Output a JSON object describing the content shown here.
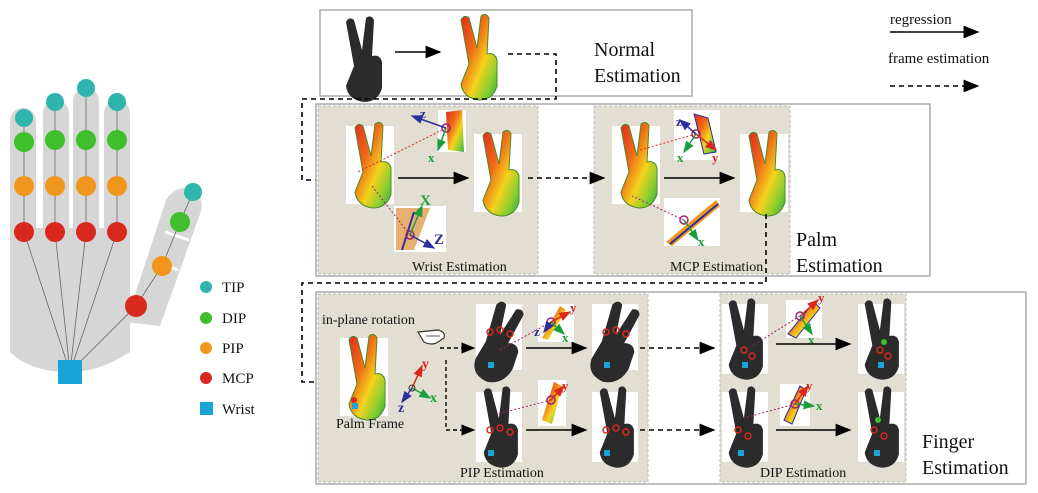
{
  "legend": {
    "regression": "regression",
    "frame_estimation": "frame estimation"
  },
  "joints": {
    "tip": "TIP",
    "dip": "DIP",
    "pip": "PIP",
    "mcp": "MCP",
    "wrist": "Wrist"
  },
  "colors": {
    "tip": "#2fb5ad",
    "dip": "#3fbf2b",
    "pip": "#f0961c",
    "mcp": "#d9281e",
    "wrist": "#1aa3d6",
    "panel_bg": "#e2dfd2",
    "hand_gray": "#d6d6d6"
  },
  "stages": {
    "normal": [
      "Normal",
      "Estimation"
    ],
    "palm": [
      "Palm",
      "Estimation"
    ],
    "finger": [
      "Finger",
      "Estimation"
    ]
  },
  "sub_labels": {
    "wrist": "Wrist Estimation",
    "mcp": "MCP Estimation",
    "pip": "PIP Estimation",
    "dip": "DIP Estimation",
    "palm_frame": "Palm Frame",
    "in_plane_rotation": "in-plane rotation"
  },
  "axes": {
    "x": "x",
    "y": "y",
    "z": "z",
    "X": "X",
    "Z": "Z"
  }
}
